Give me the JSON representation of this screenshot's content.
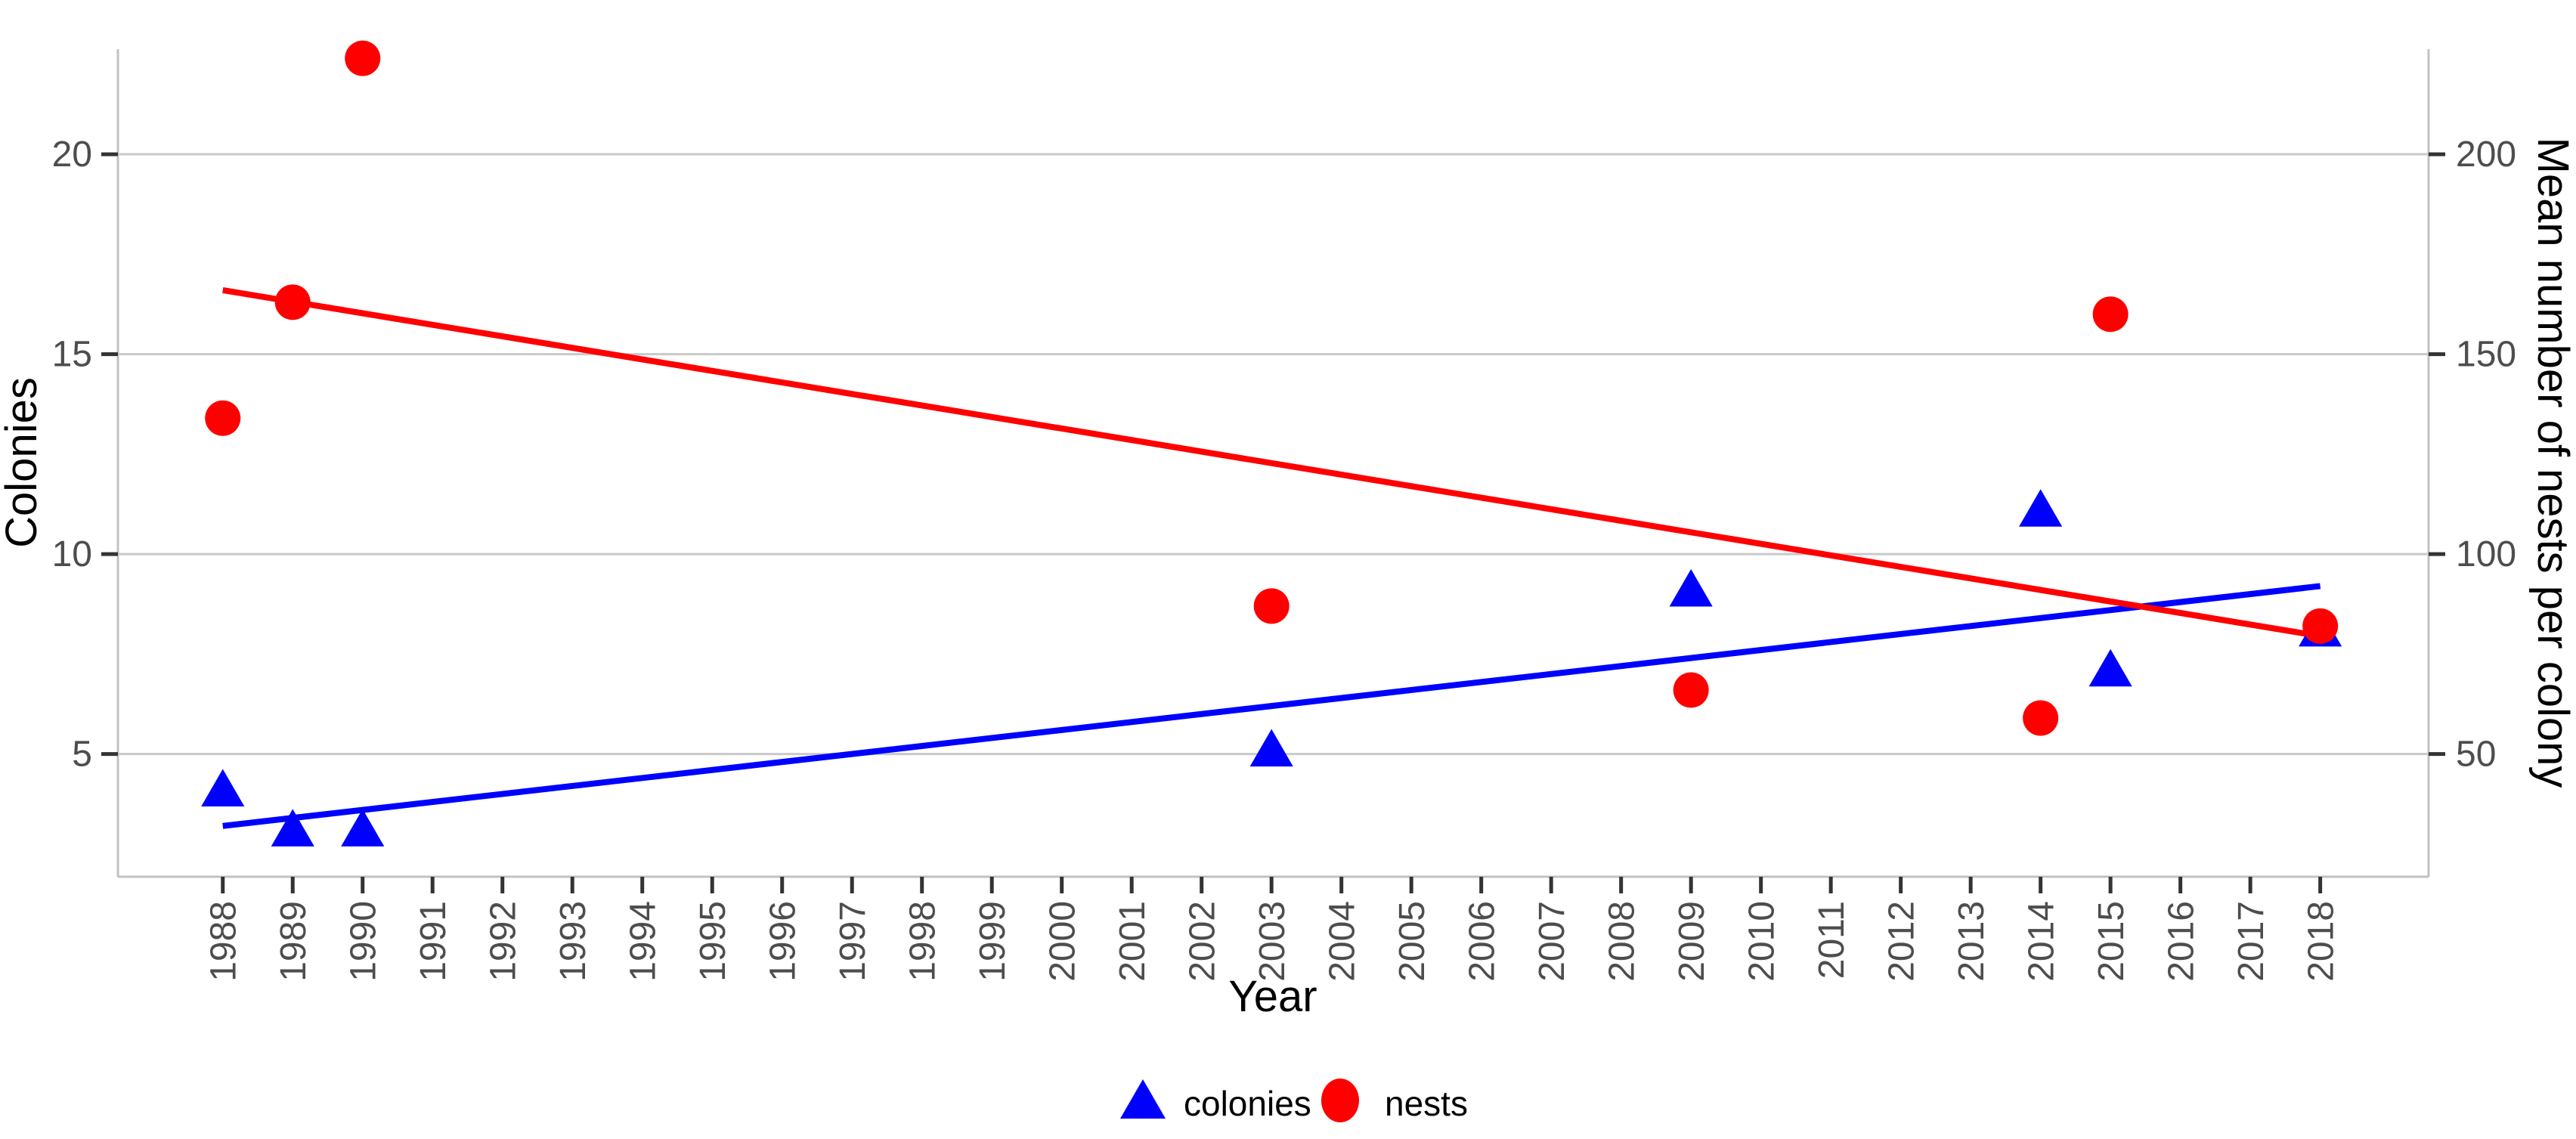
{
  "chart_data": {
    "type": "scatter",
    "title": "",
    "xlabel": "Year",
    "ylabel_left": "Colonies",
    "ylabel_right": "Mean number of nests per colony",
    "grid": "horizontal-major-only",
    "legend_position": "bottom-center",
    "x_ticks": [
      1988,
      1989,
      1990,
      1991,
      1992,
      1993,
      1994,
      1995,
      1996,
      1997,
      1998,
      1999,
      2000,
      2001,
      2002,
      2003,
      2004,
      2005,
      2006,
      2007,
      2008,
      2009,
      2010,
      2011,
      2012,
      2013,
      2014,
      2015,
      2016,
      2017,
      2018
    ],
    "y_left_ticks": [
      5,
      10,
      15,
      20
    ],
    "y_right_ticks": [
      50,
      100,
      150,
      200
    ],
    "x_range": [
      1986.5,
      2019.55
    ],
    "y_left_range": [
      1.93,
      22.63
    ],
    "y_right_range": [
      19.3,
      226.3
    ],
    "series": [
      {
        "name": "colonies",
        "axis": "left",
        "marker": "triangle",
        "color": "#0000ff",
        "x": [
          1988,
          1989,
          1990,
          2003,
          2009,
          2014,
          2015,
          2018
        ],
        "y": [
          4,
          3,
          3,
          5,
          9,
          11,
          7,
          8
        ]
      },
      {
        "name": "nests",
        "axis": "right",
        "marker": "circle",
        "color": "#ff0000",
        "x": [
          1988,
          1989,
          1990,
          2003,
          2009,
          2014,
          2015,
          2018
        ],
        "y": [
          134,
          163,
          224,
          87,
          66,
          59,
          160,
          82
        ]
      }
    ],
    "trend_lines": [
      {
        "series": "colonies",
        "axis": "left",
        "color": "#0000ff",
        "x1": 1988,
        "y1": 3.2,
        "x2": 2018,
        "y2": 9.2
      },
      {
        "series": "nests",
        "axis": "right",
        "color": "#ff0000",
        "x1": 1988,
        "y1": 166,
        "x2": 2018,
        "y2": 79.5
      }
    ]
  },
  "legend": {
    "items": [
      {
        "label": "colonies",
        "marker": "triangle",
        "color": "#0000ff"
      },
      {
        "label": "nests",
        "marker": "circle",
        "color": "#ff0000"
      }
    ]
  },
  "colors": {
    "background": "#ffffff",
    "gridline": "#c9c9c9",
    "axis_line": "#c2c2c2",
    "tick_mark": "#333333",
    "tick_label": "#4d4d4d",
    "axis_title": "#000000",
    "series_colonies": "#0000ff",
    "series_nests": "#ff0000"
  }
}
